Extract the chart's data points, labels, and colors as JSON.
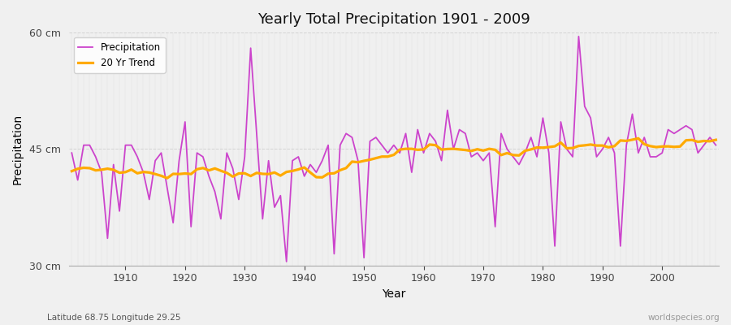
{
  "title": "Yearly Total Precipitation 1901 - 2009",
  "xlabel": "Year",
  "ylabel": "Precipitation",
  "subtitle_left": "Latitude 68.75 Longitude 29.25",
  "subtitle_right": "worldspecies.org",
  "ylim": [
    30,
    60
  ],
  "yticks": [
    30,
    45,
    60
  ],
  "ytick_labels": [
    "30 cm",
    "45 cm",
    "60 cm"
  ],
  "precip_color": "#cc44cc",
  "trend_color": "#ffaa00",
  "bg_color": "#f0f0f0",
  "grid_color": "#d0d0d0",
  "legend_label_precip": "Precipitation",
  "legend_label_trend": "20 Yr Trend",
  "years": [
    1901,
    1902,
    1903,
    1904,
    1905,
    1906,
    1907,
    1908,
    1909,
    1910,
    1911,
    1912,
    1913,
    1914,
    1915,
    1916,
    1917,
    1918,
    1919,
    1920,
    1921,
    1922,
    1923,
    1924,
    1925,
    1926,
    1927,
    1928,
    1929,
    1930,
    1931,
    1932,
    1933,
    1934,
    1935,
    1936,
    1937,
    1938,
    1939,
    1940,
    1941,
    1942,
    1943,
    1944,
    1945,
    1946,
    1947,
    1948,
    1949,
    1950,
    1951,
    1952,
    1953,
    1954,
    1955,
    1956,
    1957,
    1958,
    1959,
    1960,
    1961,
    1962,
    1963,
    1964,
    1965,
    1966,
    1967,
    1968,
    1969,
    1970,
    1971,
    1972,
    1973,
    1974,
    1975,
    1976,
    1977,
    1978,
    1979,
    1980,
    1981,
    1982,
    1983,
    1984,
    1985,
    1986,
    1987,
    1988,
    1989,
    1990,
    1991,
    1992,
    1993,
    1994,
    1995,
    1996,
    1997,
    1998,
    1999,
    2000,
    2001,
    2002,
    2003,
    2004,
    2005,
    2006,
    2007,
    2008,
    2009
  ],
  "precip": [
    44.5,
    41.0,
    45.5,
    45.5,
    44.0,
    42.0,
    33.5,
    43.0,
    37.0,
    45.5,
    45.5,
    44.0,
    42.0,
    38.5,
    43.5,
    44.5,
    40.0,
    35.5,
    43.5,
    48.5,
    35.0,
    44.5,
    44.0,
    41.5,
    39.5,
    36.0,
    44.5,
    42.5,
    38.5,
    44.0,
    58.0,
    47.0,
    36.0,
    43.5,
    37.5,
    39.0,
    30.5,
    43.5,
    44.0,
    41.5,
    43.0,
    42.0,
    43.5,
    45.5,
    31.5,
    45.5,
    47.0,
    46.5,
    43.5,
    31.0,
    46.0,
    46.5,
    45.5,
    44.5,
    45.5,
    44.5,
    47.0,
    42.0,
    47.5,
    44.5,
    47.0,
    46.0,
    43.5,
    50.0,
    45.0,
    47.5,
    47.0,
    44.0,
    44.5,
    43.5,
    44.5,
    35.0,
    47.0,
    45.0,
    44.0,
    43.0,
    44.5,
    46.5,
    44.0,
    49.0,
    44.5,
    32.5,
    48.5,
    45.0,
    44.0,
    59.5,
    50.5,
    49.0,
    44.0,
    45.0,
    46.5,
    44.5,
    32.5,
    45.5,
    49.5,
    44.5,
    46.5,
    44.0,
    44.0,
    44.5,
    47.5,
    47.0,
    47.5,
    48.0,
    47.5,
    44.5,
    45.5,
    46.5,
    45.5
  ]
}
